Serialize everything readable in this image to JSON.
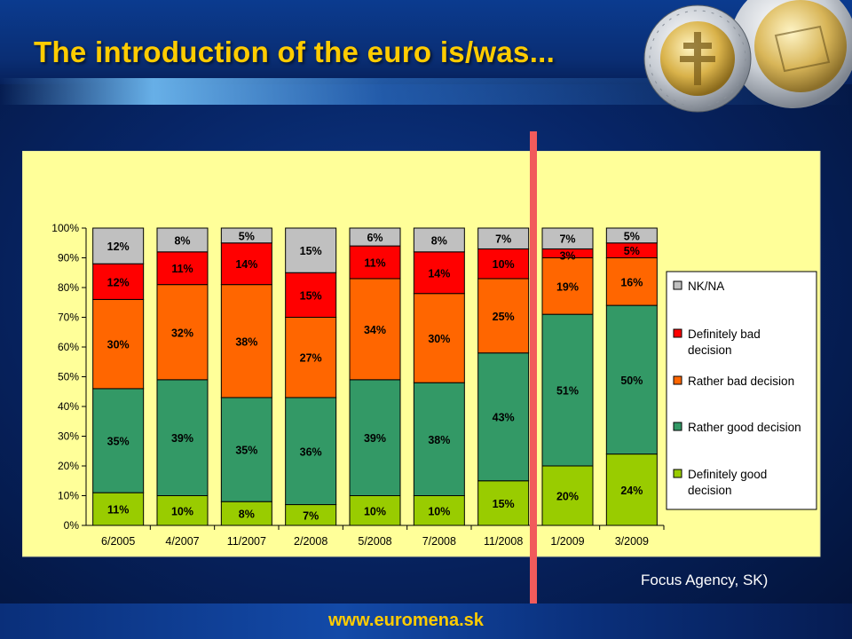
{
  "slide": {
    "title": "The introduction of the euro is/was...",
    "source": "Focus Agency, SK)",
    "url": "www.euromena.sk"
  },
  "chart_data": {
    "type": "bar",
    "stacked": true,
    "categories": [
      "6/2005",
      "4/2007",
      "11/2007",
      "2/2008",
      "5/2008",
      "7/2008",
      "11/2008",
      "1/2009",
      "3/2009"
    ],
    "series": [
      {
        "name": "Definitely good decision",
        "color": "#99cc00",
        "values": [
          11,
          10,
          8,
          7,
          10,
          10,
          15,
          20,
          24
        ],
        "labels": [
          "11%",
          "10%",
          "8%",
          "7%",
          "10%",
          "10%",
          "15%",
          "20%",
          "24%"
        ]
      },
      {
        "name": "Rather good decision",
        "color": "#339966",
        "values": [
          35,
          39,
          35,
          36,
          39,
          38,
          43,
          51,
          50
        ],
        "labels": [
          "35%",
          "39%",
          "35%",
          "36%",
          "39%",
          "38%",
          "43%",
          "51%",
          "50%"
        ]
      },
      {
        "name": "Rather bad decision",
        "color": "#ff6600",
        "values": [
          30,
          32,
          38,
          27,
          34,
          30,
          25,
          19,
          16
        ],
        "labels": [
          "30%",
          "32%",
          "38%",
          "27%",
          "34%",
          "30%",
          "25%",
          "19%",
          "16%"
        ]
      },
      {
        "name": "Definitely bad decision",
        "color": "#ff0000",
        "values": [
          12,
          11,
          14,
          15,
          11,
          14,
          10,
          3,
          5
        ],
        "labels": [
          "12%",
          "11%",
          "14%",
          "15%",
          "11%",
          "14%",
          "10%",
          "3%",
          "5%"
        ]
      },
      {
        "name": "NK/NA",
        "color": "#c0c0c0",
        "values": [
          12,
          8,
          5,
          15,
          6,
          8,
          7,
          7,
          5
        ],
        "labels": [
          "12%",
          "8%",
          "5%",
          "15%",
          "6%",
          "8%",
          "7%",
          "7%",
          "5%"
        ]
      }
    ],
    "ylim": [
      0,
      100
    ],
    "yticks": [
      "0%",
      "10%",
      "20%",
      "30%",
      "40%",
      "50%",
      "60%",
      "70%",
      "80%",
      "90%",
      "100%"
    ],
    "legend": {
      "position": "right",
      "entries": [
        {
          "lines": [
            "NK/NA"
          ],
          "color": "#c0c0c0"
        },
        {
          "lines": [
            "Definitely bad",
            "decision"
          ],
          "color": "#ff0000"
        },
        {
          "lines": [
            "Rather bad decision"
          ],
          "color": "#ff6600"
        },
        {
          "lines": [
            "Rather good decision"
          ],
          "color": "#339966"
        },
        {
          "lines": [
            "Definitely good",
            "decision"
          ],
          "color": "#99cc00"
        }
      ]
    },
    "background": "#ffff99"
  }
}
